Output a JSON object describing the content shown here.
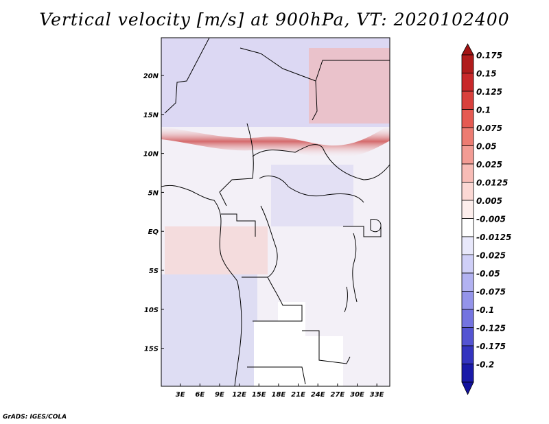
{
  "title": "Vertical velocity [m/s] at 900hPa, VT: 2020102400",
  "credit": "GrADS: IGES/COLA",
  "map": {
    "projection": "lat-lon",
    "region": "Central Africa",
    "variable": "Vertical velocity",
    "units": "m/s",
    "level": "900hPa",
    "valid_time": "2020102400",
    "lon_range": [
      0,
      35
    ],
    "lat_range": [
      -20,
      25
    ],
    "lat_ticks": [
      {
        "value": 20,
        "label": "20N"
      },
      {
        "value": 15,
        "label": "15N"
      },
      {
        "value": 10,
        "label": "10N"
      },
      {
        "value": 5,
        "label": "5N"
      },
      {
        "value": 0,
        "label": "EQ"
      },
      {
        "value": -5,
        "label": "5S"
      },
      {
        "value": -10,
        "label": "10S"
      },
      {
        "value": -15,
        "label": "15S"
      }
    ],
    "lon_ticks": [
      {
        "value": 3,
        "label": "3E"
      },
      {
        "value": 6,
        "label": "6E"
      },
      {
        "value": 9,
        "label": "9E"
      },
      {
        "value": 12,
        "label": "12E"
      },
      {
        "value": 15,
        "label": "15E"
      },
      {
        "value": 18,
        "label": "18E"
      },
      {
        "value": 21,
        "label": "21E"
      },
      {
        "value": 24,
        "label": "24E"
      },
      {
        "value": 27,
        "label": "27E"
      },
      {
        "value": 30,
        "label": "30E"
      },
      {
        "value": 33,
        "label": "33E"
      }
    ]
  },
  "colorbar": {
    "levels": [
      {
        "label": "0.175",
        "color": "#b01c1c"
      },
      {
        "label": "0.15",
        "color": "#c8282a"
      },
      {
        "label": "0.125",
        "color": "#d8403c"
      },
      {
        "label": "0.1",
        "color": "#e55a52"
      },
      {
        "label": "0.075",
        "color": "#ec7c72"
      },
      {
        "label": "0.05",
        "color": "#f29c94"
      },
      {
        "label": "0.025",
        "color": "#f7bcb6"
      },
      {
        "label": "0.0125",
        "color": "#fbd8d4"
      },
      {
        "label": "0.005",
        "color": "#fdeeec"
      },
      {
        "label": "-0.005",
        "color": "#ffffff"
      },
      {
        "label": "-0.0125",
        "color": "#e8e8fb"
      },
      {
        "label": "-0.025",
        "color": "#cfcff7"
      },
      {
        "label": "-0.05",
        "color": "#b2b2f1"
      },
      {
        "label": "-0.075",
        "color": "#9494ea"
      },
      {
        "label": "-0.1",
        "color": "#7474e0"
      },
      {
        "label": "-0.125",
        "color": "#5454d2"
      },
      {
        "label": "-0.175",
        "color": "#3434bf"
      },
      {
        "label": "-0.2",
        "color": "#1a1aa8"
      }
    ],
    "end_top_color": "#a31414",
    "end_bottom_color": "#12129e"
  }
}
